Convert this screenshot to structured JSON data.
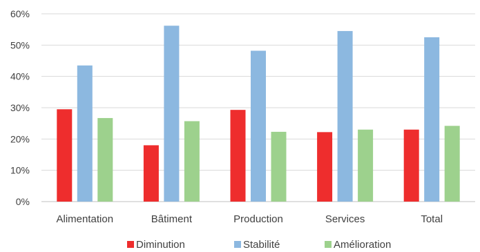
{
  "chart_data": {
    "type": "bar",
    "title": "",
    "xlabel": "",
    "ylabel": "",
    "ylim": [
      0,
      60
    ],
    "yticks": [
      "0%",
      "10%",
      "20%",
      "30%",
      "40%",
      "50%",
      "60%"
    ],
    "ytick_values": [
      0,
      10,
      20,
      30,
      40,
      50,
      60
    ],
    "y_unit": "%",
    "grid": true,
    "legend_position": "bottom",
    "categories": [
      "Alimentation",
      "Bâtiment",
      "Production",
      "Services",
      "Total"
    ],
    "series": [
      {
        "name": "Diminution",
        "color": "#ee2d2d",
        "values": [
          29.5,
          18,
          29.3,
          22.2,
          23
        ]
      },
      {
        "name": "Stabilité",
        "color": "#8cb8e0",
        "values": [
          43.5,
          56.2,
          48.2,
          54.5,
          52.5
        ]
      },
      {
        "name": "Amélioration",
        "color": "#9dd18d",
        "values": [
          26.7,
          25.7,
          22.3,
          23,
          24.2
        ]
      }
    ]
  }
}
